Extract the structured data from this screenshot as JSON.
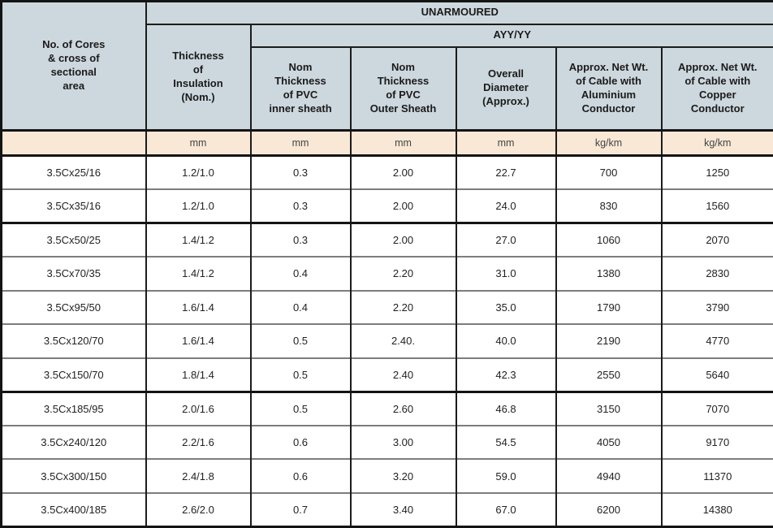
{
  "colors": {
    "header_bg": "#cdd7de",
    "units_bg": "#f9e8d6",
    "grid_line": "#1c1c1c",
    "row_separator": "#7d7d7d"
  },
  "table": {
    "corner_header": "No. of Cores\n& cross of\nsectional\narea",
    "group_header": "UNARMOURED",
    "subgroup_header": "AYY/YY",
    "insulation_header": "Thickness\nof\nInsulation\n(Nom.)",
    "column_headers": [
      "Nom\nThickness\nof PVC\ninner sheath",
      "Nom\nThickness\nof PVC\nOuter Sheath",
      "Overall\nDiameter\n(Approx.)",
      "Approx. Net Wt.\nof Cable with\nAluminium\nConductor",
      "Approx. Net Wt.\nof Cable with\nCopper\nConductor"
    ],
    "units": [
      "",
      "mm",
      "mm",
      "mm",
      "mm",
      "kg/km",
      "kg/km"
    ],
    "rows": [
      [
        "3.5Cx25/16",
        "1.2/1.0",
        "0.3",
        "2.00",
        "22.7",
        "700",
        "1250"
      ],
      [
        "3.5Cx35/16",
        "1.2/1.0",
        "0.3",
        "2.00",
        "24.0",
        "830",
        "1560"
      ],
      [
        "3.5Cx50/25",
        "1.4/1.2",
        "0.3",
        "2.00",
        "27.0",
        "1060",
        "2070"
      ],
      [
        "3.5Cx70/35",
        "1.4/1.2",
        "0.4",
        "2.20",
        "31.0",
        "1380",
        "2830"
      ],
      [
        "3.5Cx95/50",
        "1.6/1.4",
        "0.4",
        "2.20",
        "35.0",
        "1790",
        "3790"
      ],
      [
        "3.5Cx120/70",
        "1.6/1.4",
        "0.5",
        "2.40.",
        "40.0",
        "2190",
        "4770"
      ],
      [
        "3.5Cx150/70",
        "1.8/1.4",
        "0.5",
        "2.40",
        "42.3",
        "2550",
        "5640"
      ],
      [
        "3.5Cx185/95",
        "2.0/1.6",
        "0.5",
        "2.60",
        "46.8",
        "3150",
        "7070"
      ],
      [
        "3.5Cx240/120",
        "2.2/1.6",
        "0.6",
        "3.00",
        "54.5",
        "4050",
        "9170"
      ],
      [
        "3.5Cx300/150",
        "2.4/1.8",
        "0.6",
        "3.20",
        "59.0",
        "4940",
        "11370"
      ],
      [
        "3.5Cx400/185",
        "2.6/2.0",
        "0.7",
        "3.40",
        "67.0",
        "6200",
        "14380"
      ]
    ],
    "thick_separator_after_rows": [
      2,
      7
    ]
  }
}
